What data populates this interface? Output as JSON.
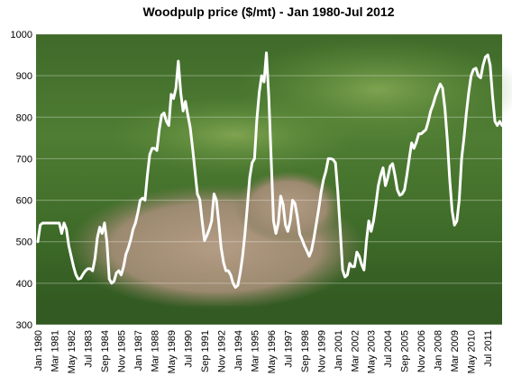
{
  "chart_data": {
    "type": "line",
    "title": "Woodpulp price ($/mt) - Jan 1980-Jul 2012",
    "categories": [
      "Jan 1980",
      null,
      null,
      null,
      null,
      null,
      null,
      "Mar 1981",
      null,
      null,
      null,
      null,
      null,
      null,
      "May 1982",
      null,
      null,
      null,
      null,
      null,
      null,
      "Jul 1983",
      null,
      null,
      null,
      null,
      null,
      null,
      "Sep 1984",
      null,
      null,
      null,
      null,
      null,
      null,
      "Nov 1985",
      null,
      null,
      null,
      null,
      null,
      null,
      "Jan 1987",
      null,
      null,
      null,
      null,
      null,
      null,
      "Mar 1988",
      null,
      null,
      null,
      null,
      null,
      null,
      "May 1989",
      null,
      null,
      null,
      null,
      null,
      null,
      "Jul 1990",
      null,
      null,
      null,
      null,
      null,
      null,
      "Sep 1991",
      null,
      null,
      null,
      null,
      null,
      null,
      "Nov 1992",
      null,
      null,
      null,
      null,
      null,
      null,
      "Jan 1994",
      null,
      null,
      null,
      null,
      null,
      null,
      "Mar 1995",
      null,
      null,
      null,
      null,
      null,
      null,
      "May 1996",
      null,
      null,
      null,
      null,
      null,
      null,
      "Jul 1997",
      null,
      null,
      null,
      null,
      null,
      null,
      "Sep 1998",
      null,
      null,
      null,
      null,
      null,
      null,
      "Nov 1999",
      null,
      null,
      null,
      null,
      null,
      null,
      "Jan 2001",
      null,
      null,
      null,
      null,
      null,
      null,
      "Mar 2002",
      null,
      null,
      null,
      null,
      null,
      null,
      "May 2003",
      null,
      null,
      null,
      null,
      null,
      null,
      "Jul 2004",
      null,
      null,
      null,
      null,
      null,
      null,
      "Sep 2005",
      null,
      null,
      null,
      null,
      null,
      null,
      "Nov 2006",
      null,
      null,
      null,
      null,
      null,
      null,
      "Jan 2008",
      null,
      null,
      null,
      null,
      null,
      null,
      "Mar 2009",
      null,
      null,
      null,
      null,
      null,
      null,
      "May 2010",
      null,
      null,
      null,
      null,
      null,
      null,
      "Jul 2011",
      null,
      null,
      null,
      null,
      null,
      null
    ],
    "values": [
      500,
      540,
      545,
      545,
      545,
      545,
      545,
      545,
      545,
      545,
      520,
      545,
      530,
      490,
      465,
      440,
      420,
      410,
      412,
      422,
      430,
      435,
      435,
      430,
      460,
      510,
      535,
      520,
      545,
      500,
      410,
      400,
      405,
      425,
      430,
      420,
      440,
      470,
      485,
      505,
      530,
      545,
      570,
      600,
      605,
      600,
      660,
      710,
      725,
      725,
      720,
      770,
      805,
      810,
      790,
      780,
      855,
      845,
      870,
      935,
      860,
      815,
      838,
      805,
      775,
      725,
      670,
      615,
      602,
      550,
      503,
      515,
      530,
      550,
      615,
      600,
      545,
      485,
      450,
      430,
      430,
      420,
      400,
      390,
      395,
      425,
      465,
      520,
      585,
      655,
      690,
      700,
      795,
      860,
      900,
      885,
      955,
      850,
      700,
      550,
      520,
      545,
      610,
      590,
      540,
      525,
      550,
      600,
      592,
      560,
      518,
      505,
      490,
      478,
      465,
      480,
      510,
      545,
      580,
      620,
      650,
      670,
      700,
      700,
      698,
      690,
      620,
      530,
      432,
      415,
      420,
      448,
      440,
      440,
      475,
      465,
      445,
      432,
      500,
      550,
      525,
      550,
      590,
      635,
      660,
      678,
      635,
      655,
      682,
      688,
      660,
      625,
      612,
      615,
      625,
      660,
      700,
      738,
      725,
      740,
      760,
      760,
      765,
      770,
      790,
      815,
      830,
      850,
      865,
      880,
      870,
      820,
      745,
      650,
      575,
      540,
      550,
      600,
      700,
      750,
      810,
      860,
      900,
      915,
      918,
      900,
      895,
      925,
      945,
      950,
      925,
      850,
      790,
      780,
      790,
      780
    ],
    "color": "#ffffff",
    "ylim": [
      300,
      1000
    ],
    "yticks": [
      300,
      400,
      500,
      600,
      700,
      800,
      900,
      1000
    ],
    "grid": true
  }
}
